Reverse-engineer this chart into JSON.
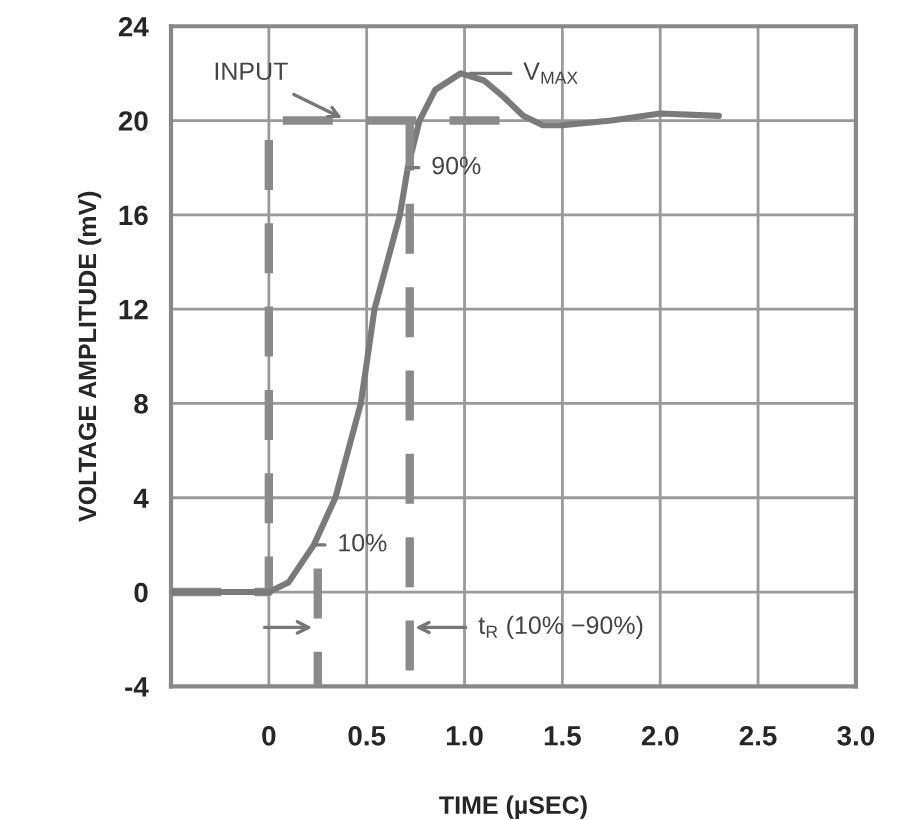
{
  "chart_data": {
    "type": "line",
    "xlabel": "TIME (µSEC)",
    "ylabel": "VOLTAGE AMPLITUDE (mV)",
    "xlim": [
      -0.5,
      3.0
    ],
    "ylim": [
      -4,
      24
    ],
    "xticks": [
      {
        "value": -0.5,
        "label": null
      },
      0,
      0.5,
      {
        "value": 1,
        "label": "1.0"
      },
      1.5,
      {
        "value": 2,
        "label": "2.0"
      },
      2.5,
      {
        "value": 3,
        "label": "3.0"
      }
    ],
    "yticks": [
      -4,
      0,
      4,
      8,
      12,
      16,
      20,
      24
    ],
    "grid": true,
    "series": [
      {
        "color": "#8a8a8a",
        "line_style": "dashed",
        "x": [
          -0.5,
          0,
          0,
          1.2
        ],
        "values": [
          0,
          0,
          20,
          20
        ]
      },
      {
        "color": "#7a7a7a",
        "line_style": "solid",
        "x": [
          -0.5,
          0,
          0.1,
          0.23,
          0.34,
          0.47,
          0.54,
          0.67,
          0.71,
          0.77,
          0.85,
          0.98,
          1.1,
          1.2,
          1.3,
          1.4,
          1.5,
          1.75,
          2.0,
          2.3
        ],
        "values": [
          0,
          0,
          0.4,
          2,
          4,
          8,
          12,
          16,
          18,
          20,
          21.3,
          22,
          21.7,
          21,
          20.2,
          19.8,
          19.8,
          20,
          20.3,
          20.2
        ]
      },
      {
        "color": "#8a8a8a",
        "line_style": "dashed",
        "x": [
          0.25,
          0.25
        ],
        "values": [
          1,
          -4
        ]
      },
      {
        "color": "#8a8a8a",
        "line_style": "dashed",
        "x": [
          0.72,
          0.72
        ],
        "values": [
          20,
          -4
        ]
      }
    ],
    "annotations": [
      {
        "text": "INPUT",
        "x": 0.4,
        "y": 20
      },
      {
        "text": "V$_{MAX}$",
        "x": 1.0,
        "y": 22
      },
      {
        "text": "90%",
        "x": 0.68,
        "y": 18
      },
      {
        "text": "10%",
        "x": 0.2,
        "y": 2
      },
      {
        "text": "t$_{R}$ (10% −90%)",
        "x": 0.72,
        "y": -1.5
      }
    ]
  }
}
